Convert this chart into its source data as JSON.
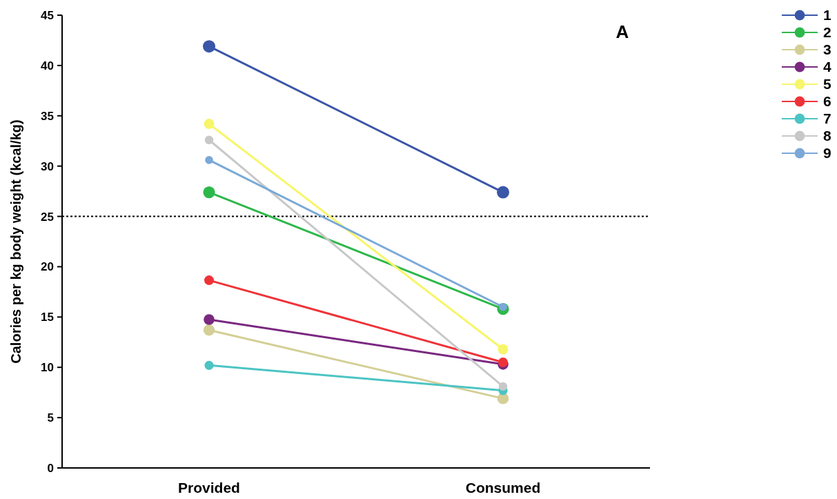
{
  "chart_data": {
    "type": "line",
    "ylabel": "Calories per kg body weight (kcal/kg)",
    "categories": [
      "Provided",
      "Consumed"
    ],
    "ylim": [
      0,
      45
    ],
    "yticks": [
      0,
      5,
      10,
      15,
      20,
      25,
      30,
      35,
      40,
      45
    ],
    "marker": "circle",
    "line_style": "solid",
    "legend": "top right",
    "grid": false,
    "annotations": [
      "A"
    ],
    "ref_lines": [
      {
        "axis": "y",
        "value": 25,
        "color": "#000000",
        "line_style": "dotted"
      }
    ],
    "series": [
      {
        "name": "1",
        "color": "#3a56a8",
        "values": [
          41.9,
          27.4
        ]
      },
      {
        "name": "2",
        "color": "#2db84a",
        "values": [
          27.4,
          15.8
        ]
      },
      {
        "name": "3",
        "color": "#d4cf96",
        "values": [
          13.7,
          6.9
        ]
      },
      {
        "name": "4",
        "color": "#7a2880",
        "values": [
          14.75,
          10.3
        ]
      },
      {
        "name": "5",
        "color": "#f7f56a",
        "values": [
          34.2,
          11.8
        ]
      },
      {
        "name": "6",
        "color": "#ee3338",
        "values": [
          18.65,
          10.5
        ]
      },
      {
        "name": "7",
        "color": "#4cc4c4",
        "values": [
          10.2,
          7.7
        ]
      },
      {
        "name": "8",
        "color": "#c8c8c8",
        "values": [
          32.6,
          8.1
        ]
      },
      {
        "name": "9",
        "color": "#7aa8d8",
        "values": [
          30.6,
          16.0
        ]
      }
    ]
  }
}
